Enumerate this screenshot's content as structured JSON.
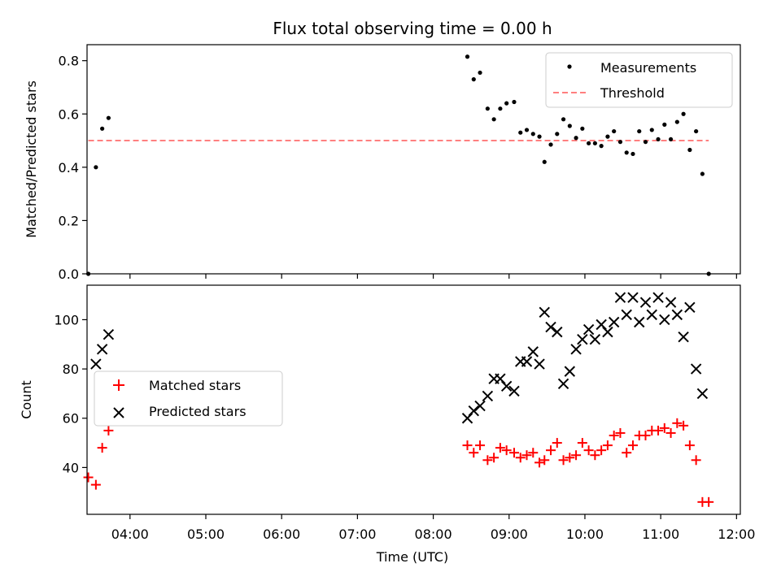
{
  "figure": {
    "title": "Flux total observing time = 0.00 h"
  },
  "chart_data": [
    {
      "type": "scatter",
      "panel": "top",
      "ylabel": "Matched/Predicted stars",
      "xlabel": "",
      "xlim": [
        "03:26",
        "12:03"
      ],
      "ylim": [
        0,
        0.86
      ],
      "yticks": [
        "0.0",
        "0.2",
        "0.4",
        "0.6",
        "0.8"
      ],
      "grid": false,
      "legend_position": "top-right",
      "series": [
        {
          "name": "Measurements",
          "marker": "dot",
          "color": "#000000",
          "points": [
            [
              "03:27",
              0.0
            ],
            [
              "03:33",
              0.4
            ],
            [
              "03:38",
              0.545
            ],
            [
              "03:43",
              0.585
            ],
            [
              "08:27",
              0.815
            ],
            [
              "08:32",
              0.73
            ],
            [
              "08:37",
              0.755
            ],
            [
              "08:43",
              0.62
            ],
            [
              "08:48",
              0.58
            ],
            [
              "08:53",
              0.62
            ],
            [
              "08:58",
              0.64
            ],
            [
              "09:04",
              0.645
            ],
            [
              "09:09",
              0.53
            ],
            [
              "09:14",
              0.54
            ],
            [
              "09:19",
              0.525
            ],
            [
              "09:24",
              0.515
            ],
            [
              "09:28",
              0.42
            ],
            [
              "09:33",
              0.485
            ],
            [
              "09:38",
              0.525
            ],
            [
              "09:43",
              0.58
            ],
            [
              "09:48",
              0.555
            ],
            [
              "09:53",
              0.51
            ],
            [
              "09:58",
              0.545
            ],
            [
              "10:03",
              0.49
            ],
            [
              "10:08",
              0.49
            ],
            [
              "10:13",
              0.48
            ],
            [
              "10:18",
              0.515
            ],
            [
              "10:23",
              0.535
            ],
            [
              "10:28",
              0.495
            ],
            [
              "10:33",
              0.455
            ],
            [
              "10:38",
              0.45
            ],
            [
              "10:43",
              0.535
            ],
            [
              "10:48",
              0.495
            ],
            [
              "10:53",
              0.54
            ],
            [
              "10:58",
              0.505
            ],
            [
              "11:03",
              0.56
            ],
            [
              "11:08",
              0.505
            ],
            [
              "11:13",
              0.57
            ],
            [
              "11:18",
              0.6
            ],
            [
              "11:23",
              0.465
            ],
            [
              "11:28",
              0.535
            ],
            [
              "11:33",
              0.375
            ],
            [
              "11:38",
              0.0
            ]
          ]
        },
        {
          "name": "Threshold",
          "type": "line",
          "style": "dashed",
          "color": "#ff7f7f",
          "x": [
            "03:27",
            "11:38"
          ],
          "y": [
            0.5,
            0.5
          ]
        }
      ]
    },
    {
      "type": "scatter",
      "panel": "bottom",
      "ylabel": "Count",
      "xlabel": "Time (UTC)",
      "xlim": [
        "03:26",
        "12:03"
      ],
      "ylim": [
        21,
        114
      ],
      "yticks": [
        "40",
        "60",
        "80",
        "100"
      ],
      "xticks": [
        "04:00",
        "05:00",
        "06:00",
        "07:00",
        "08:00",
        "09:00",
        "10:00",
        "11:00",
        "12:00"
      ],
      "grid": false,
      "legend_position": "center-left",
      "series": [
        {
          "name": "Matched stars",
          "marker": "plus",
          "color": "#ff0000",
          "points": [
            [
              "03:27",
              36
            ],
            [
              "03:33",
              33
            ],
            [
              "03:38",
              48
            ],
            [
              "03:43",
              55
            ],
            [
              "08:27",
              49
            ],
            [
              "08:32",
              46
            ],
            [
              "08:37",
              49
            ],
            [
              "08:43",
              43
            ],
            [
              "08:48",
              44
            ],
            [
              "08:53",
              48
            ],
            [
              "08:58",
              47
            ],
            [
              "09:04",
              46
            ],
            [
              "09:09",
              44
            ],
            [
              "09:14",
              45
            ],
            [
              "09:19",
              46
            ],
            [
              "09:24",
              42
            ],
            [
              "09:28",
              43
            ],
            [
              "09:33",
              47
            ],
            [
              "09:38",
              50
            ],
            [
              "09:43",
              43
            ],
            [
              "09:48",
              44
            ],
            [
              "09:53",
              45
            ],
            [
              "09:58",
              50
            ],
            [
              "10:03",
              47
            ],
            [
              "10:08",
              45
            ],
            [
              "10:13",
              47
            ],
            [
              "10:18",
              49
            ],
            [
              "10:23",
              53
            ],
            [
              "10:28",
              54
            ],
            [
              "10:33",
              46
            ],
            [
              "10:38",
              49
            ],
            [
              "10:43",
              53
            ],
            [
              "10:48",
              53
            ],
            [
              "10:53",
              55
            ],
            [
              "10:58",
              55
            ],
            [
              "11:03",
              56
            ],
            [
              "11:08",
              54
            ],
            [
              "11:13",
              58
            ],
            [
              "11:18",
              57
            ],
            [
              "11:23",
              49
            ],
            [
              "11:28",
              43
            ],
            [
              "11:33",
              26
            ],
            [
              "11:38",
              26
            ]
          ]
        },
        {
          "name": "Predicted stars",
          "marker": "x",
          "color": "#000000",
          "points": [
            [
              "03:33",
              82
            ],
            [
              "03:38",
              88
            ],
            [
              "03:43",
              94
            ],
            [
              "08:27",
              60
            ],
            [
              "08:32",
              63
            ],
            [
              "08:37",
              65
            ],
            [
              "08:43",
              69
            ],
            [
              "08:48",
              76
            ],
            [
              "08:53",
              76
            ],
            [
              "08:58",
              73
            ],
            [
              "09:04",
              71
            ],
            [
              "09:09",
              83
            ],
            [
              "09:14",
              83
            ],
            [
              "09:19",
              87
            ],
            [
              "09:24",
              82
            ],
            [
              "09:28",
              103
            ],
            [
              "09:33",
              97
            ],
            [
              "09:38",
              95
            ],
            [
              "09:43",
              74
            ],
            [
              "09:48",
              79
            ],
            [
              "09:53",
              88
            ],
            [
              "09:58",
              92
            ],
            [
              "10:03",
              96
            ],
            [
              "10:08",
              92
            ],
            [
              "10:13",
              98
            ],
            [
              "10:18",
              95
            ],
            [
              "10:23",
              99
            ],
            [
              "10:28",
              109
            ],
            [
              "10:33",
              102
            ],
            [
              "10:38",
              109
            ],
            [
              "10:43",
              99
            ],
            [
              "10:48",
              107
            ],
            [
              "10:53",
              102
            ],
            [
              "10:58",
              109
            ],
            [
              "11:03",
              100
            ],
            [
              "11:08",
              107
            ],
            [
              "11:13",
              102
            ],
            [
              "11:18",
              93
            ],
            [
              "11:23",
              105
            ],
            [
              "11:28",
              80
            ],
            [
              "11:33",
              70
            ]
          ]
        }
      ]
    }
  ]
}
